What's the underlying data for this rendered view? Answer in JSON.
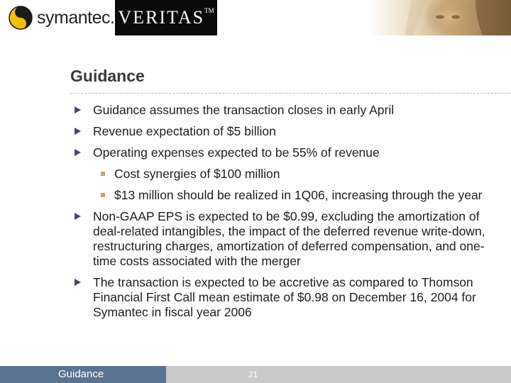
{
  "header": {
    "symantec_logo_text": "symantec.",
    "veritas_logo_text": "VERITAS",
    "veritas_tm": "TM"
  },
  "slide": {
    "title": "Guidance",
    "bullets": [
      {
        "text": "Guidance assumes the transaction closes in early April"
      },
      {
        "text": "Revenue expectation of $5 billion"
      },
      {
        "text": "Operating expenses expected to be 55% of revenue"
      },
      {
        "text": "Cost synergies of $100 million"
      },
      {
        "text": "$13 million should be realized in 1Q06, increasing through the year"
      },
      {
        "text": "Non-GAAP EPS is expected to be $0.99, excluding the amortization of deal-related intangibles, the impact of the deferred revenue write-down, restructuring charges, amortization of deferred compensation, and one-time costs associated with the merger"
      },
      {
        "text": "The transaction is expected to be accretive as compared to Thomson Financial First Call mean estimate of $0.98 on December 16, 2004 for Symantec in fiscal year 2006"
      }
    ]
  },
  "footer": {
    "label": "Guidance",
    "page_number": "21"
  },
  "colors": {
    "footer_blue": "#5a7390",
    "footer_gray": "#c9c9c9",
    "bullet_marker": "#3f4a6e",
    "sub_bullet_marker": "#c8a06a",
    "symantec_yellow": "#f2c200"
  }
}
